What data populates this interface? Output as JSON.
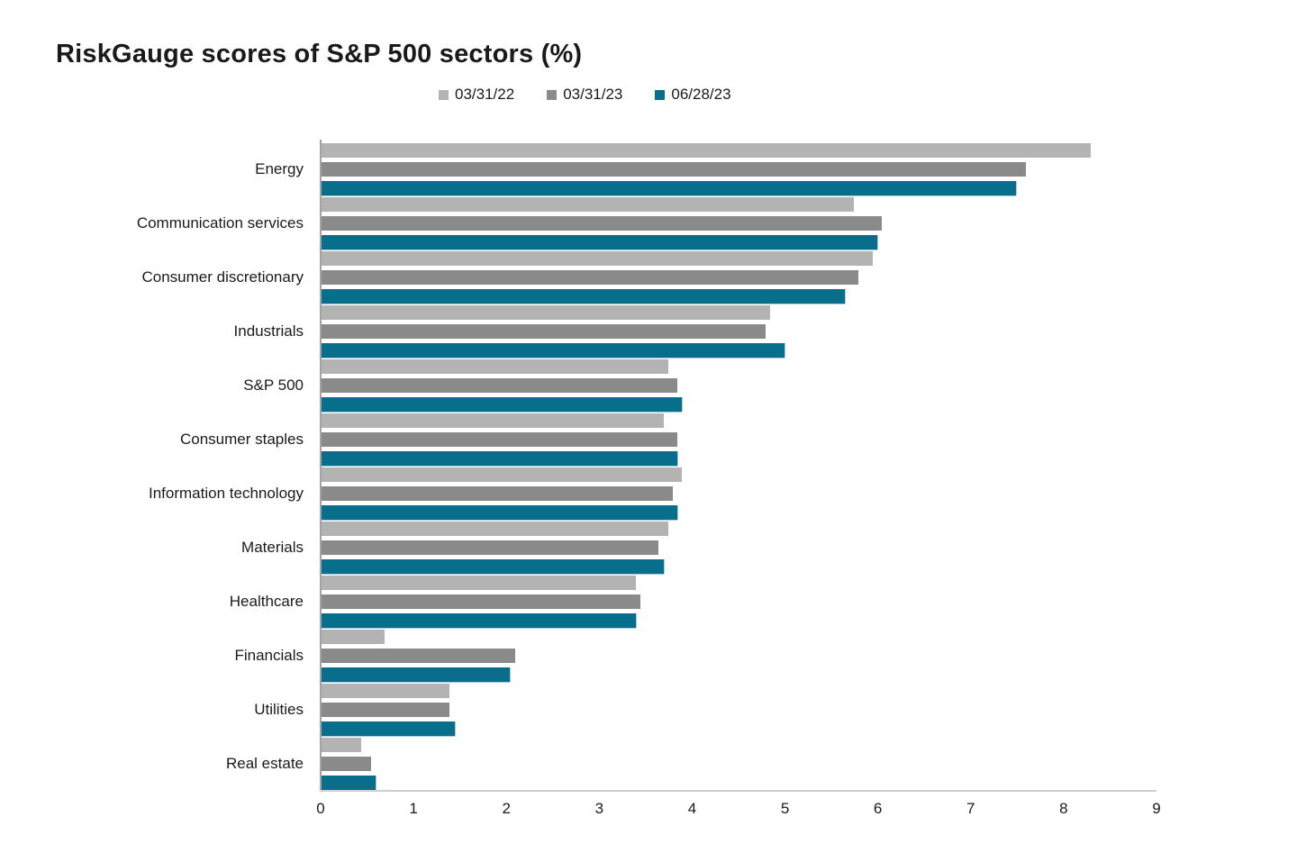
{
  "title": "RiskGauge scores of S&P 500 sectors (%)",
  "legend": [
    {
      "label": "03/31/22",
      "color": "#b3b3b3"
    },
    {
      "label": "03/31/23",
      "color": "#8a8a8a"
    },
    {
      "label": "06/28/23",
      "color": "#086e8c"
    }
  ],
  "colors": {
    "series_light_gray": "#b3b3b3",
    "series_dark_gray": "#8a8a8a",
    "series_teal": "#086e8c",
    "axis_line": "#a3a3a3",
    "baseline": "#cfcfcf",
    "text": "#1a1a1a"
  },
  "chart_data": {
    "type": "bar",
    "orientation": "horizontal",
    "title": "RiskGauge scores of S&P 500 sectors (%)",
    "xlabel": "",
    "ylabel": "",
    "xlim": [
      0,
      9
    ],
    "xticks": [
      0,
      1,
      2,
      3,
      4,
      5,
      6,
      7,
      8,
      9
    ],
    "grid": false,
    "legend_position": "top",
    "categories": [
      "Energy",
      "Communication services",
      "Consumer discretionary",
      "Industrials",
      "S&P 500",
      "Consumer staples",
      "Information technology",
      "Materials",
      "Healthcare",
      "Financials",
      "Utilities",
      "Real estate"
    ],
    "series": [
      {
        "name": "03/31/22",
        "color": "#b3b3b3",
        "values": [
          8.3,
          5.75,
          5.95,
          4.85,
          3.75,
          3.7,
          3.9,
          3.75,
          3.4,
          0.7,
          1.4,
          0.45
        ]
      },
      {
        "name": "03/31/23",
        "color": "#8a8a8a",
        "values": [
          7.6,
          6.05,
          5.8,
          4.8,
          3.85,
          3.85,
          3.8,
          3.65,
          3.45,
          2.1,
          1.4,
          0.55
        ]
      },
      {
        "name": "06/28/23",
        "color": "#086e8c",
        "values": [
          7.5,
          6.0,
          5.65,
          5.0,
          3.9,
          3.85,
          3.85,
          3.7,
          3.4,
          2.05,
          1.45,
          0.6
        ]
      }
    ]
  }
}
